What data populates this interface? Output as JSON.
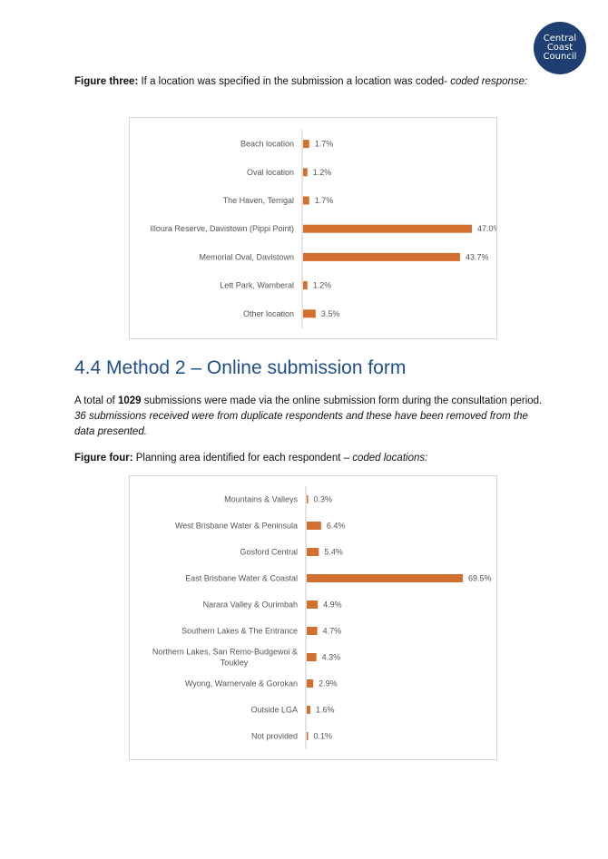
{
  "logo": {
    "line1": "Central",
    "line2": "Coast",
    "line3": "Council"
  },
  "figure3": {
    "label": "Figure three:",
    "text": " If a location was specified in the submission a location was coded- ",
    "italic": "coded response:"
  },
  "section": {
    "heading": "4.4 Method 2 – Online submission form"
  },
  "para": {
    "p1": "A total of ",
    "p1_bold": "1029",
    "p1_rest": " submissions were made via the online submission form during the consultation period.  ",
    "p1_italic": "36 submissions received were from duplicate respondents and these have been removed from the data presented."
  },
  "figure4": {
    "label": "Figure four:",
    "text": " Planning area identified for each respondent – ",
    "italic": "coded locations:"
  },
  "colors": {
    "bar": "#d3702f",
    "axis": "#c8c8c8"
  },
  "chart_data": [
    {
      "type": "bar",
      "orientation": "horizontal",
      "categories": [
        "Beach location",
        "Oval location",
        "The Haven, Terrigal",
        "Illoura Reserve, Davistown (Pippi Point)",
        "Memorial Oval, Davistown",
        "Lett Park, Wamberal",
        "Other location"
      ],
      "values": [
        1.7,
        1.2,
        1.7,
        47.0,
        43.7,
        1.2,
        3.5
      ],
      "value_labels": [
        "1.7%",
        "1.2%",
        "1.7%",
        "47.0%",
        "43.7%",
        "1.2%",
        "3.5%"
      ],
      "xlim": [
        0,
        47.0
      ],
      "grid": false
    },
    {
      "type": "bar",
      "orientation": "horizontal",
      "categories": [
        "Mountains & Valleys",
        "West Brisbane Water & Peninsula",
        "Gosford Central",
        "East Brisbane Water & Coastal",
        "Narara Valley & Ourimbah",
        "Southern Lakes & The Entrance",
        "Northern Lakes, San Remo-Budgewoi & Toukley",
        "Wyong, Warnervale & Gorokan",
        "Outside LGA",
        "Not provided"
      ],
      "values": [
        0.3,
        6.4,
        5.4,
        69.5,
        4.9,
        4.7,
        4.3,
        2.9,
        1.6,
        0.1
      ],
      "value_labels": [
        "0.3%",
        "6.4%",
        "5.4%",
        "69.5%",
        "4.9%",
        "4.7%",
        "4.3%",
        "2.9%",
        "1.6%",
        "0.1%"
      ],
      "xlim": [
        0,
        69.5
      ],
      "grid": false
    }
  ]
}
